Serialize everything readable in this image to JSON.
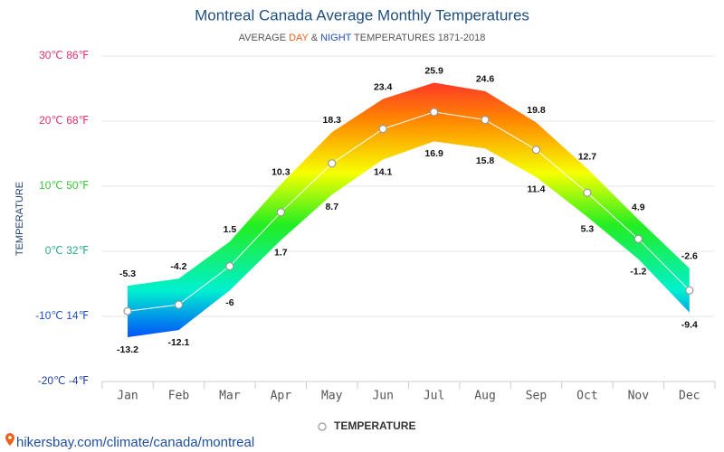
{
  "chart_data": {
    "type": "range-line",
    "title": "Montreal Canada Average Monthly Temperatures",
    "subtitle": [
      {
        "text": "AVERAGE ",
        "color": "#555555"
      },
      {
        "text": "DAY",
        "color": "#e8641b"
      },
      {
        "text": " & ",
        "color": "#555555"
      },
      {
        "text": "NIGHT",
        "color": "#1f4fbf"
      },
      {
        "text": " TEMPERATURES 1871-2018",
        "color": "#555555"
      }
    ],
    "y_label": "TEMPERATURE",
    "categories": [
      "Jan",
      "Feb",
      "Mar",
      "Apr",
      "May",
      "Jun",
      "Jul",
      "Aug",
      "Sep",
      "Oct",
      "Nov",
      "Dec"
    ],
    "high": [
      -5.3,
      -4.2,
      1.5,
      10.3,
      18.3,
      23.4,
      25.9,
      24.6,
      19.8,
      12.7,
      4.9,
      -2.6
    ],
    "low": [
      -13.2,
      -12.1,
      -6,
      1.7,
      8.7,
      14.1,
      16.9,
      15.8,
      11.4,
      5.3,
      -1.2,
      -9.4
    ],
    "series": [
      {
        "name": "TEMPERATURE",
        "color": "#ffffff",
        "values": [
          -9.2,
          -8.2,
          -2.3,
          6,
          13.5,
          18.8,
          21.4,
          20.2,
          15.6,
          9,
          1.9,
          -6
        ]
      }
    ],
    "ylim": [
      -20,
      30
    ],
    "yticks": [
      {
        "value": 30,
        "label": "30℃ 86℉"
      },
      {
        "value": 20,
        "label": "20℃ 68℉"
      },
      {
        "value": 10,
        "label": "10℃ 50℉"
      },
      {
        "value": 0,
        "label": "0℃ 32℉"
      },
      {
        "value": -10,
        "label": "-10℃ 14℉"
      },
      {
        "value": -20,
        "label": "-20℃ -4℉"
      }
    ],
    "ytick_colors": [
      "#e0306b",
      "#e0306b",
      "#3cc43c",
      "#2aa88a",
      "#1f4fbf",
      "#1f3fa0"
    ],
    "gradient": [
      {
        "value": 30,
        "color": "#ff0040"
      },
      {
        "value": 20,
        "color": "#ff8a00"
      },
      {
        "value": 12,
        "color": "#f6ff00"
      },
      {
        "value": 4,
        "color": "#22ee22"
      },
      {
        "value": -6,
        "color": "#00f0d0"
      },
      {
        "value": -14,
        "color": "#0040ff"
      }
    ],
    "grid": true,
    "source": "hikersbay.com/climate/canada/montreal"
  }
}
